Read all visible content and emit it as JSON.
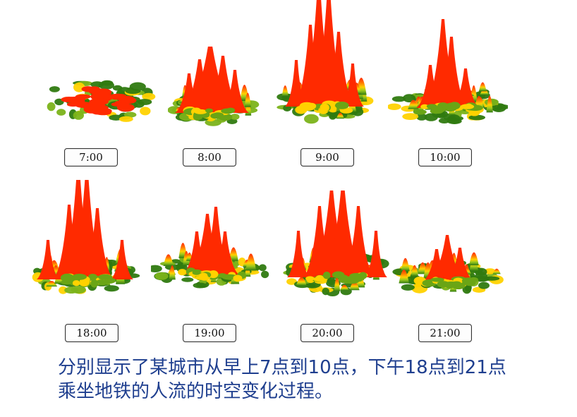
{
  "panels": [
    {
      "time": "7:00"
    },
    {
      "time": "8:00"
    },
    {
      "time": "9:00"
    },
    {
      "time": "10:00"
    },
    {
      "time": "18:00"
    },
    {
      "time": "19:00"
    },
    {
      "time": "20:00"
    },
    {
      "time": "21:00"
    }
  ],
  "caption": {
    "line1": "分别显示了某城市从早上7点到10点，下午18点到21点",
    "line2": "乘坐地铁的人流的时空变化过程。"
  },
  "colors": {
    "peak": "#ff2a00",
    "mid": "#ffd200",
    "low": "#2f7a10",
    "caption": "#1f3f8f"
  }
}
